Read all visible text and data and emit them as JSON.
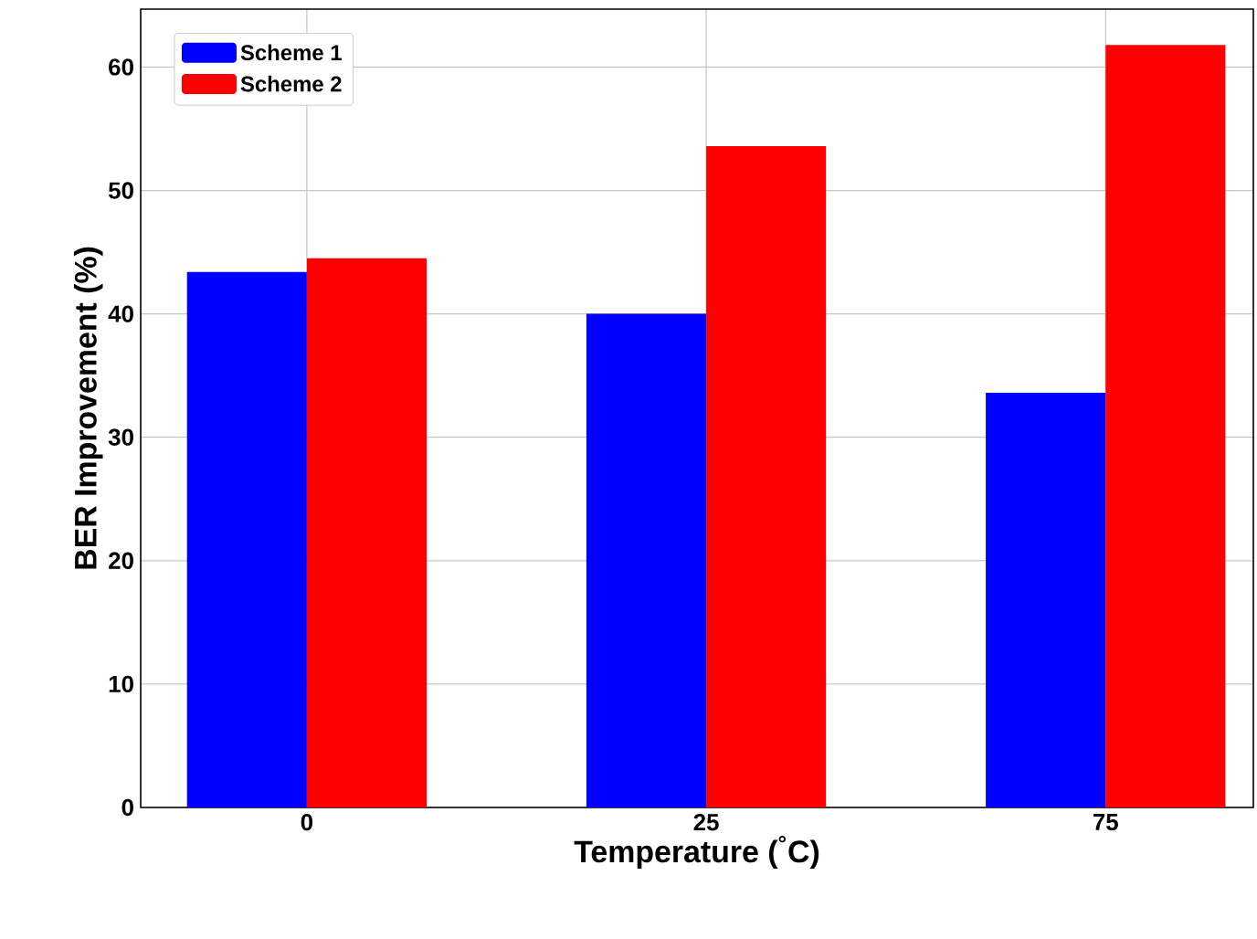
{
  "chart_data": {
    "type": "bar",
    "xlabel": "Temperature ($^{°}$C)",
    "ylabel": "BER Improvement (%)",
    "categories": [
      "0",
      "25",
      "75"
    ],
    "series": [
      {
        "name": "Scheme 1",
        "color": "#0000ff",
        "values": [
          43.4,
          40.0,
          33.6
        ]
      },
      {
        "name": "Scheme 2",
        "color": "#ff0000",
        "values": [
          44.5,
          53.6,
          61.8
        ]
      }
    ],
    "ylim": [
      0,
      64.7
    ],
    "yticks": [
      0,
      10,
      20,
      30,
      40,
      50,
      60
    ],
    "grid": true,
    "legend": "top left"
  }
}
